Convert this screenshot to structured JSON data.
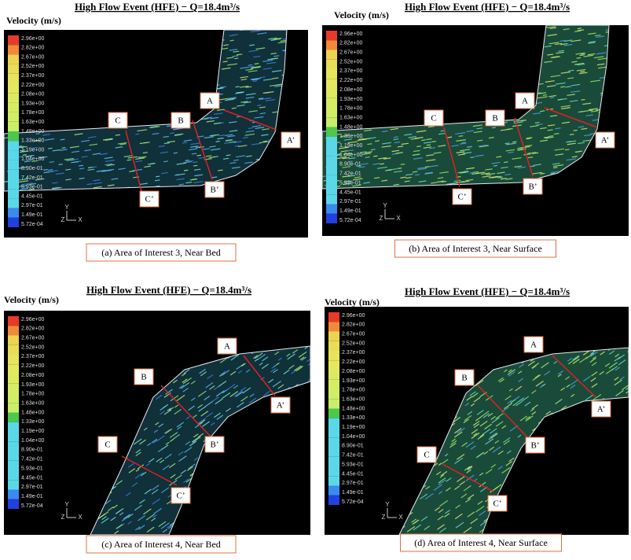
{
  "colorbar": {
    "title": "Velocity (m/s)",
    "labels": [
      "2.96e+00",
      "2.82e+00",
      "2.67e+00",
      "2.52e+00",
      "2.37e+00",
      "2.22e+00",
      "2.08e+00",
      "1.93e+00",
      "1.78e+00",
      "1.63e+00",
      "1.48e+00",
      "1.33e+00",
      "1.19e+00",
      "1.04e+00",
      "8.90e-01",
      "7.42e-01",
      "5.93e-01",
      "4.45e-01",
      "2.97e-01",
      "1.49e-01",
      "5.72e-04"
    ]
  },
  "triad": {
    "y": "Y",
    "z": "Z",
    "x": "X"
  },
  "panels": [
    {
      "title": "High Flow Event (HFE) − Q=18.4m³/s",
      "caption": "(a) Area of Interest 3, Near Bed",
      "sections": [
        {
          "start": "A",
          "end": "A’"
        },
        {
          "start": "B",
          "end": "B’"
        },
        {
          "start": "C",
          "end": "C’"
        }
      ]
    },
    {
      "title": "High Flow Event (HFE) − Q=18.4m³/s",
      "caption": "(b) Area of Interest 3, Near Surface",
      "sections": [
        {
          "start": "A",
          "end": "A’"
        },
        {
          "start": "B",
          "end": "B’"
        },
        {
          "start": "C",
          "end": "C’"
        }
      ]
    },
    {
      "title": "High Flow Event (HFE) − Q=18.4m³/s",
      "caption": "(c) Area of Interest 4, Near Bed",
      "sections": [
        {
          "start": "A",
          "end": "A’"
        },
        {
          "start": "B",
          "end": "B’"
        },
        {
          "start": "C",
          "end": "C’"
        }
      ]
    },
    {
      "title": "High Flow Event (HFE) − Q=18.4m³/s",
      "caption": "(d) Area of Interest 4, Near Surface",
      "sections": [
        {
          "start": "A",
          "end": "A’"
        },
        {
          "start": "B",
          "end": "B’"
        },
        {
          "start": "C",
          "end": "C’"
        }
      ]
    }
  ]
}
